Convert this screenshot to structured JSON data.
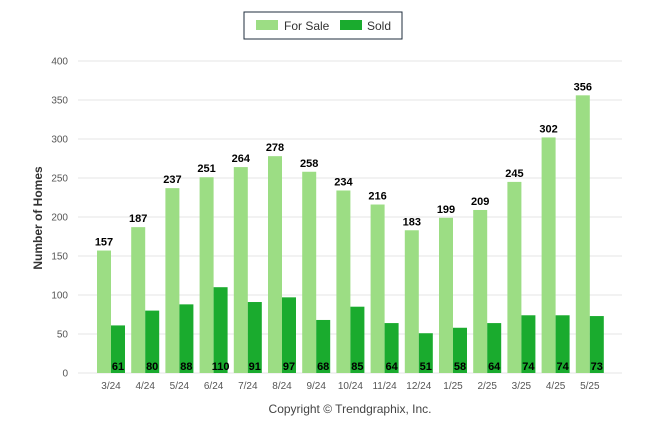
{
  "chart_data": {
    "type": "bar",
    "categories": [
      "3/24",
      "4/24",
      "5/24",
      "6/24",
      "7/24",
      "8/24",
      "9/24",
      "10/24",
      "11/24",
      "12/24",
      "1/25",
      "2/25",
      "3/25",
      "4/25",
      "5/25"
    ],
    "series": [
      {
        "name": "For Sale",
        "color": "#9cdd84",
        "values": [
          157,
          187,
          237,
          251,
          264,
          278,
          258,
          234,
          216,
          183,
          199,
          209,
          245,
          302,
          356
        ]
      },
      {
        "name": "Sold",
        "color": "#1aab2e",
        "values": [
          61,
          80,
          88,
          110,
          91,
          97,
          68,
          85,
          64,
          51,
          58,
          64,
          74,
          74,
          73
        ]
      }
    ],
    "title": "",
    "xlabel": "",
    "ylabel": "Number of Homes",
    "ylim": [
      0,
      400
    ],
    "yticks": [
      0,
      50,
      100,
      150,
      200,
      250,
      300,
      350,
      400
    ],
    "grid": true,
    "legend": "top-center",
    "credit": "Copyright © Trendgraphix, Inc."
  }
}
